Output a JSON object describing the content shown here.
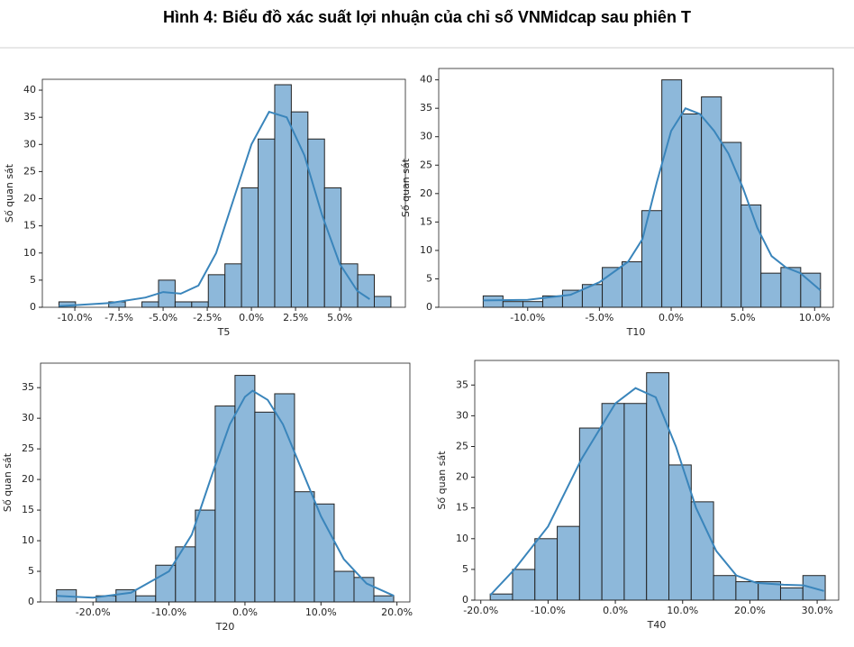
{
  "title": "Hình 4: Biểu đồ xác suất lợi nhuận của chỉ số VNMidcap sau phiên T",
  "chart_data": [
    {
      "type": "histogram",
      "xlabel": "T5",
      "ylabel": "Số quan sát",
      "bins": [
        -10.9,
        -9.96,
        -9.02,
        -8.08,
        -7.14,
        -6.2,
        -5.26,
        -4.32,
        -3.38,
        -2.44,
        -1.5,
        -0.56,
        0.38,
        1.32,
        2.26,
        3.2,
        4.14,
        5.08,
        6.02,
        6.96,
        7.9
      ],
      "values": [
        1,
        0,
        0,
        1,
        0,
        1,
        5,
        1,
        1,
        6,
        8,
        22,
        31,
        41,
        36,
        31,
        22,
        8,
        6,
        2
      ],
      "color": "#8db8da",
      "edgecolor": "#222222",
      "kde": {
        "color": "#3a85bb",
        "x": [
          -10.9,
          -8,
          -6,
          -5,
          -4,
          -3,
          -2,
          -1,
          0,
          1,
          2,
          3,
          4,
          5,
          6,
          6.7
        ],
        "values": [
          0.2,
          0.8,
          1.8,
          2.8,
          2.5,
          4,
          10,
          20,
          30,
          36,
          35,
          28,
          17,
          8,
          3,
          1.5
        ]
      },
      "xlim": [
        -11.84,
        8.72
      ],
      "ylim": [
        0,
        42
      ],
      "xticks": [
        {
          "value": -10,
          "label": "-10.0%"
        },
        {
          "value": -7.5,
          "label": "-7.5%"
        },
        {
          "value": -5,
          "label": "-5.0%"
        },
        {
          "value": -2.5,
          "label": "-2.5%"
        },
        {
          "value": 0,
          "label": "0.0%"
        },
        {
          "value": 2.5,
          "label": "2.5%"
        },
        {
          "value": 5,
          "label": "5.0%"
        }
      ],
      "yticks": [
        0,
        5,
        10,
        15,
        20,
        25,
        30,
        35,
        40
      ]
    },
    {
      "type": "histogram",
      "xlabel": "T10",
      "ylabel": "Số quan sát",
      "bins": [
        -13.1,
        -11.72,
        -10.33,
        -8.95,
        -7.57,
        -6.19,
        -4.8,
        -3.42,
        -2.04,
        -0.65,
        0.73,
        2.11,
        3.5,
        4.88,
        6.26,
        7.65,
        9.03,
        10.41
      ],
      "values": [
        2,
        1,
        1,
        2,
        3,
        4,
        7,
        8,
        17,
        40,
        34,
        37,
        29,
        18,
        6,
        7,
        6
      ],
      "color": "#8db8da",
      "edgecolor": "#222222",
      "kde": {
        "color": "#3a85bb",
        "x": [
          -13.1,
          -10,
          -7,
          -5,
          -3,
          -2,
          -1,
          0,
          1,
          2,
          3,
          4,
          5,
          6,
          7,
          8,
          9,
          10.4
        ],
        "values": [
          1.2,
          1.3,
          2.2,
          4.4,
          8,
          12,
          22,
          31,
          35,
          34,
          31,
          27,
          21,
          14,
          9,
          7,
          6,
          3
        ]
      },
      "xlim": [
        -16.2,
        11.3
      ],
      "ylim": [
        0,
        42
      ],
      "xticks": [
        {
          "value": -10,
          "label": "-10.0%"
        },
        {
          "value": -5,
          "label": "-5.0%"
        },
        {
          "value": 0,
          "label": "0.0%"
        },
        {
          "value": 5,
          "label": "5.0%"
        },
        {
          "value": 10,
          "label": "10.0%"
        }
      ],
      "yticks": [
        0,
        5,
        10,
        15,
        20,
        25,
        30,
        35,
        40
      ]
    },
    {
      "type": "histogram",
      "xlabel": "T20",
      "ylabel": "Số quan sát",
      "bins": [
        -24.8,
        -22.19,
        -19.58,
        -16.97,
        -14.36,
        -11.75,
        -9.14,
        -6.53,
        -3.92,
        -1.31,
        1.3,
        3.91,
        6.52,
        9.13,
        11.74,
        14.35,
        16.96,
        19.57
      ],
      "values": [
        2,
        0,
        1,
        2,
        1,
        6,
        9,
        15,
        32,
        37,
        31,
        34,
        18,
        16,
        5,
        4,
        1
      ],
      "color": "#8db8da",
      "edgecolor": "#222222",
      "kde": {
        "color": "#3a85bb",
        "x": [
          -24.8,
          -20,
          -15,
          -10,
          -7,
          -4,
          -2,
          0,
          1,
          3,
          5,
          7,
          10,
          13,
          16,
          19.6
        ],
        "values": [
          1,
          0.7,
          1.5,
          5,
          11,
          22,
          29,
          33.5,
          34.5,
          33,
          29,
          23,
          14,
          7,
          3,
          1
        ]
      },
      "xlim": [
        -26.9,
        21.7
      ],
      "ylim": [
        0,
        39
      ],
      "xticks": [
        {
          "value": -20,
          "label": "-20.0%"
        },
        {
          "value": -10,
          "label": "-10.0%"
        },
        {
          "value": 0,
          "label": "0.0%"
        },
        {
          "value": 10,
          "label": "10.0%"
        },
        {
          "value": 20,
          "label": "20.0%"
        }
      ],
      "yticks": [
        0,
        5,
        10,
        15,
        20,
        25,
        30,
        35
      ]
    },
    {
      "type": "histogram",
      "xlabel": "T40",
      "ylabel": "Số quan sát",
      "bins": [
        -18.6,
        -15.28,
        -11.96,
        -8.64,
        -5.32,
        -2.0,
        1.32,
        4.64,
        7.96,
        11.28,
        14.6,
        17.92,
        21.24,
        24.56,
        27.88,
        31.2
      ],
      "values": [
        1,
        5,
        10,
        12,
        28,
        32,
        32,
        37,
        22,
        16,
        4,
        3,
        3,
        2,
        4
      ],
      "color": "#8db8da",
      "edgecolor": "#222222",
      "kde": {
        "color": "#3a85bb",
        "x": [
          -18.6,
          -15,
          -10,
          -5,
          0,
          3,
          6,
          9,
          12,
          15,
          18,
          21,
          25,
          28,
          31
        ],
        "values": [
          0.8,
          5,
          12,
          23,
          32,
          34.5,
          33,
          25,
          15,
          8,
          4,
          2.8,
          2.5,
          2.4,
          1.5
        ]
      },
      "xlim": [
        -20.9,
        33.2
      ],
      "ylim": [
        0,
        39
      ],
      "xticks": [
        {
          "value": -20,
          "label": "-20.0%"
        },
        {
          "value": -10,
          "label": "-10.0%"
        },
        {
          "value": 0,
          "label": "0.0%"
        },
        {
          "value": 10,
          "label": "10.0%"
        },
        {
          "value": 20,
          "label": "20.0%"
        },
        {
          "value": 30,
          "label": "30.0%"
        }
      ],
      "yticks": [
        0,
        5,
        10,
        15,
        20,
        25,
        30,
        35
      ]
    }
  ]
}
